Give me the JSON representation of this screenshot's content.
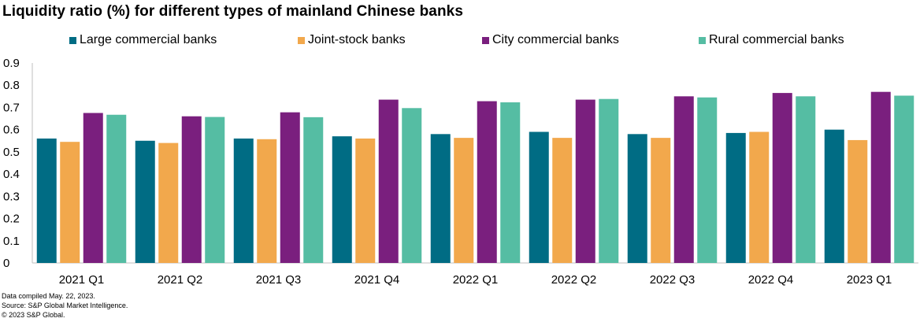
{
  "chart_data": {
    "type": "bar",
    "title": "Liquidity ratio (%) for different types of mainland Chinese banks",
    "categories": [
      "2021 Q1",
      "2021 Q2",
      "2021 Q3",
      "2021 Q4",
      "2022 Q1",
      "2022 Q2",
      "2022 Q3",
      "2022 Q4",
      "2023 Q1"
    ],
    "series": [
      {
        "name": "Large commercial banks",
        "color": "#006C84",
        "values": [
          0.56,
          0.55,
          0.56,
          0.57,
          0.58,
          0.59,
          0.58,
          0.585,
          0.6
        ]
      },
      {
        "name": "Joint-stock banks",
        "color": "#F2A84C",
        "values": [
          0.545,
          0.54,
          0.557,
          0.56,
          0.563,
          0.563,
          0.563,
          0.59,
          0.553
        ]
      },
      {
        "name": "City commercial banks",
        "color": "#7A1F7E",
        "values": [
          0.675,
          0.66,
          0.678,
          0.735,
          0.728,
          0.735,
          0.75,
          0.765,
          0.77
        ]
      },
      {
        "name": "Rural commercial banks",
        "color": "#55BDA3",
        "values": [
          0.667,
          0.657,
          0.656,
          0.697,
          0.723,
          0.738,
          0.745,
          0.75,
          0.753
        ]
      }
    ],
    "yticks": [
      "0",
      "0.1",
      "0.2",
      "0.3",
      "0.4",
      "0.5",
      "0.6",
      "0.7",
      "0.8",
      "0.9"
    ],
    "ylim": [
      0,
      0.9
    ],
    "xlabel": "",
    "ylabel": "",
    "grid": false,
    "legend_position": "top"
  },
  "footnotes": [
    "Data compiled May. 22, 2023.",
    "Source: S&P Global Market Intelligence.",
    "© 2023 S&P Global."
  ]
}
